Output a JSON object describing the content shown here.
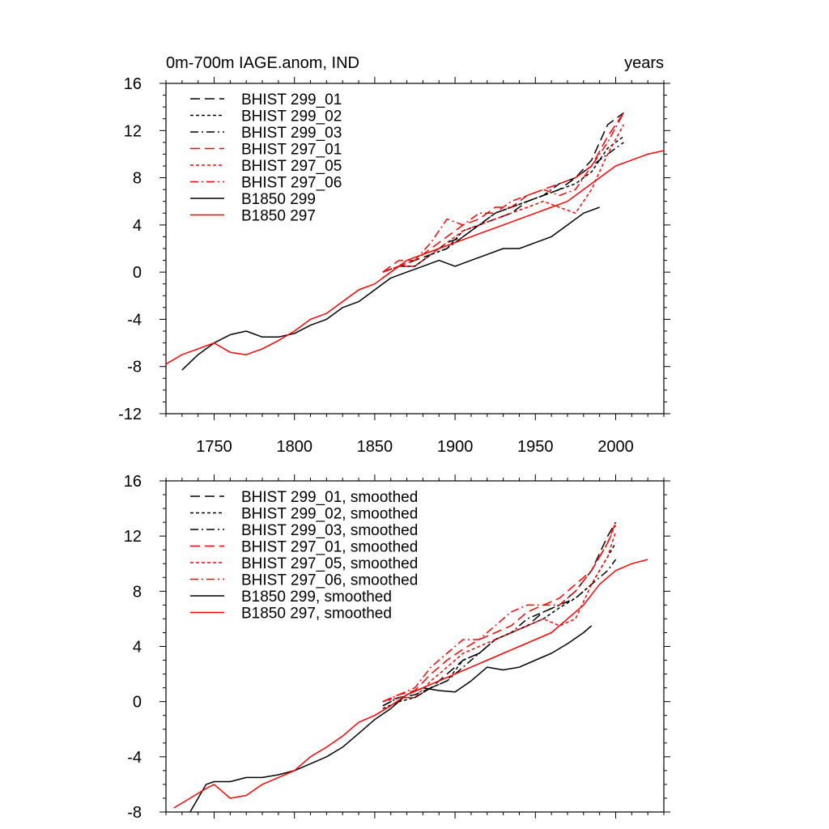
{
  "chart_data": [
    {
      "type": "line",
      "title": "0m-700m IAGE.anom, IND",
      "units_label": "years",
      "xlim": [
        1720,
        2030
      ],
      "ylim": [
        -12,
        16
      ],
      "xticks": [
        1750,
        1800,
        1850,
        1900,
        1950,
        2000
      ],
      "yticks": [
        -12,
        -8,
        -4,
        0,
        4,
        8,
        12,
        16
      ],
      "x_tick_labels_shown": true,
      "legend_position": "top-left",
      "series": [
        {
          "name": "BHIST 299_01",
          "color": "#000000",
          "dash": "long-dash",
          "x": [
            1855,
            1865,
            1875,
            1885,
            1895,
            1905,
            1915,
            1925,
            1935,
            1945,
            1955,
            1965,
            1975,
            1985,
            1995,
            2005
          ],
          "y": [
            0.0,
            0.5,
            1.0,
            1.5,
            2.5,
            3.0,
            4.0,
            4.5,
            5.0,
            6.0,
            6.5,
            7.0,
            8.0,
            9.5,
            12.5,
            13.5
          ]
        },
        {
          "name": "BHIST 299_02",
          "color": "#000000",
          "dash": "short-dash",
          "x": [
            1855,
            1865,
            1875,
            1885,
            1895,
            1905,
            1915,
            1925,
            1935,
            1945,
            1955,
            1965,
            1975,
            1985,
            1995,
            2005
          ],
          "y": [
            -0.5,
            0.5,
            0.5,
            1.5,
            2.0,
            3.5,
            4.0,
            5.0,
            5.5,
            6.0,
            6.5,
            7.0,
            7.5,
            8.5,
            10.5,
            11.5
          ]
        },
        {
          "name": "BHIST 299_03",
          "color": "#000000",
          "dash": "dash-dot",
          "x": [
            1855,
            1865,
            1875,
            1885,
            1895,
            1905,
            1915,
            1925,
            1935,
            1945,
            1955,
            1965,
            1975,
            1985,
            1995,
            2005
          ],
          "y": [
            0.0,
            0.5,
            0.5,
            1.5,
            2.0,
            3.0,
            4.0,
            5.0,
            5.5,
            6.0,
            6.5,
            7.5,
            8.0,
            9.0,
            10.0,
            11.0
          ]
        },
        {
          "name": "BHIST 297_01",
          "color": "#ff0000",
          "dash": "long-dash",
          "x": [
            1855,
            1865,
            1875,
            1885,
            1895,
            1905,
            1915,
            1925,
            1935,
            1945,
            1955,
            1965,
            1975,
            1985,
            1995,
            2005
          ],
          "y": [
            0.0,
            1.0,
            1.0,
            2.0,
            3.0,
            4.0,
            4.5,
            5.5,
            5.5,
            6.5,
            7.0,
            7.5,
            8.0,
            9.0,
            11.5,
            13.5
          ]
        },
        {
          "name": "BHIST 297_05",
          "color": "#ff0000",
          "dash": "short-dash",
          "x": [
            1855,
            1865,
            1875,
            1885,
            1895,
            1905,
            1915,
            1925,
            1935,
            1945,
            1955,
            1965,
            1975,
            1985,
            1995,
            2005
          ],
          "y": [
            0.0,
            0.5,
            0.5,
            1.5,
            2.5,
            3.5,
            4.0,
            4.5,
            5.0,
            5.5,
            6.0,
            5.5,
            5.0,
            7.0,
            10.0,
            12.5
          ]
        },
        {
          "name": "BHIST 297_06",
          "color": "#ff0000",
          "dash": "dash-dot",
          "x": [
            1855,
            1865,
            1875,
            1885,
            1895,
            1905,
            1915,
            1925,
            1935,
            1945,
            1955,
            1965,
            1975,
            1985,
            1995,
            2005
          ],
          "y": [
            0.0,
            0.5,
            1.0,
            2.5,
            4.5,
            4.0,
            5.0,
            5.0,
            6.0,
            6.5,
            7.0,
            6.5,
            7.0,
            9.0,
            11.0,
            13.5
          ]
        },
        {
          "name": "B1850 299",
          "color": "#000000",
          "dash": "solid",
          "x": [
            1730,
            1740,
            1750,
            1760,
            1770,
            1780,
            1790,
            1800,
            1810,
            1820,
            1830,
            1840,
            1850,
            1860,
            1870,
            1880,
            1890,
            1900,
            1910,
            1920,
            1930,
            1940,
            1950,
            1960,
            1970,
            1980,
            1990
          ],
          "y": [
            -8.3,
            -7.0,
            -6.0,
            -5.3,
            -5.0,
            -5.5,
            -5.5,
            -5.2,
            -4.5,
            -4.0,
            -3.0,
            -2.5,
            -1.5,
            -0.5,
            0.0,
            0.5,
            1.0,
            0.5,
            1.0,
            1.5,
            2.0,
            2.0,
            2.5,
            3.0,
            4.0,
            5.0,
            5.5
          ]
        },
        {
          "name": "B1850 297",
          "color": "#ff0000",
          "dash": "solid",
          "x": [
            1720,
            1730,
            1740,
            1750,
            1760,
            1770,
            1780,
            1790,
            1800,
            1810,
            1820,
            1830,
            1840,
            1850,
            1860,
            1870,
            1880,
            1890,
            1900,
            1910,
            1920,
            1930,
            1940,
            1950,
            1960,
            1970,
            1980,
            1990,
            2000,
            2010,
            2020,
            2030
          ],
          "y": [
            -7.8,
            -7.0,
            -6.5,
            -6.0,
            -6.8,
            -7.0,
            -6.5,
            -5.8,
            -5.0,
            -4.0,
            -3.5,
            -2.5,
            -1.5,
            -1.0,
            0.0,
            1.0,
            1.5,
            2.0,
            2.5,
            3.0,
            3.5,
            4.0,
            4.5,
            5.0,
            5.5,
            6.0,
            7.0,
            8.0,
            9.0,
            9.5,
            10.0,
            10.3
          ]
        }
      ]
    },
    {
      "type": "line",
      "xlim": [
        1720,
        2030
      ],
      "ylim": [
        -8,
        16
      ],
      "xticks": [
        1750,
        1800,
        1850,
        1900,
        1950,
        2000
      ],
      "yticks": [
        -8,
        -4,
        0,
        4,
        8,
        12,
        16
      ],
      "x_tick_labels_shown": false,
      "legend_position": "top-left",
      "series": [
        {
          "name": "BHIST 299_01, smoothed",
          "color": "#000000",
          "dash": "long-dash",
          "x": [
            1855,
            1865,
            1875,
            1885,
            1895,
            1905,
            1915,
            1925,
            1935,
            1945,
            1955,
            1965,
            1975,
            1985,
            1995,
            2000
          ],
          "y": [
            -0.3,
            0.3,
            0.5,
            1.0,
            2.0,
            3.0,
            3.5,
            4.5,
            5.0,
            5.5,
            6.5,
            7.0,
            8.0,
            9.5,
            12.0,
            13.0
          ]
        },
        {
          "name": "BHIST 299_02, smoothed",
          "color": "#000000",
          "dash": "short-dash",
          "x": [
            1855,
            1865,
            1875,
            1885,
            1895,
            1905,
            1915,
            1925,
            1935,
            1945,
            1955,
            1965,
            1975,
            1985,
            1995,
            2000
          ],
          "y": [
            -0.5,
            0.0,
            0.3,
            1.0,
            1.5,
            3.0,
            3.5,
            4.5,
            5.0,
            5.5,
            6.0,
            6.8,
            7.5,
            8.5,
            10.5,
            11.5
          ]
        },
        {
          "name": "BHIST 299_03, smoothed",
          "color": "#000000",
          "dash": "dash-dot",
          "x": [
            1855,
            1865,
            1875,
            1885,
            1895,
            1905,
            1915,
            1925,
            1935,
            1945,
            1955,
            1965,
            1975,
            1985,
            1995,
            2000
          ],
          "y": [
            -0.3,
            0.3,
            0.3,
            1.0,
            1.5,
            2.5,
            3.5,
            4.5,
            5.0,
            6.0,
            6.5,
            7.0,
            7.5,
            8.5,
            9.5,
            10.3
          ]
        },
        {
          "name": "BHIST 297_01, smoothed",
          "color": "#ff0000",
          "dash": "long-dash",
          "x": [
            1855,
            1865,
            1875,
            1885,
            1895,
            1905,
            1915,
            1925,
            1935,
            1945,
            1955,
            1965,
            1975,
            1985,
            1995,
            2000
          ],
          "y": [
            0.0,
            0.5,
            0.8,
            2.0,
            3.0,
            3.8,
            4.5,
            5.0,
            5.5,
            6.5,
            7.0,
            7.5,
            8.5,
            9.5,
            11.5,
            13.0
          ]
        },
        {
          "name": "BHIST 297_05, smoothed",
          "color": "#ff0000",
          "dash": "short-dash",
          "x": [
            1855,
            1865,
            1875,
            1885,
            1895,
            1905,
            1915,
            1925,
            1935,
            1945,
            1955,
            1965,
            1975,
            1985,
            1995,
            2000
          ],
          "y": [
            0.0,
            0.3,
            0.3,
            1.5,
            2.5,
            3.5,
            4.0,
            4.5,
            5.0,
            5.5,
            6.0,
            5.5,
            6.0,
            8.5,
            10.5,
            12.3
          ]
        },
        {
          "name": "BHIST 297_06, smoothed",
          "color": "#ff0000",
          "dash": "dash-dot",
          "x": [
            1855,
            1865,
            1875,
            1885,
            1895,
            1905,
            1915,
            1925,
            1935,
            1945,
            1955,
            1965,
            1975,
            1985,
            1995,
            2000
          ],
          "y": [
            0.0,
            0.5,
            1.0,
            2.5,
            3.5,
            4.5,
            4.5,
            5.5,
            6.5,
            7.0,
            7.0,
            7.0,
            8.0,
            9.5,
            11.5,
            12.8
          ]
        },
        {
          "name": "B1850 299, smoothed",
          "color": "#000000",
          "dash": "solid",
          "x": [
            1735,
            1740,
            1745,
            1750,
            1760,
            1770,
            1780,
            1790,
            1800,
            1810,
            1820,
            1830,
            1840,
            1850,
            1860,
            1870,
            1880,
            1890,
            1900,
            1910,
            1920,
            1930,
            1940,
            1950,
            1960,
            1970,
            1980,
            1985
          ],
          "y": [
            -8.0,
            -7.0,
            -6.0,
            -5.8,
            -5.8,
            -5.5,
            -5.5,
            -5.3,
            -5.0,
            -4.5,
            -4.0,
            -3.3,
            -2.3,
            -1.3,
            -0.5,
            0.5,
            1.0,
            0.8,
            0.7,
            1.5,
            2.5,
            2.3,
            2.5,
            3.0,
            3.5,
            4.2,
            5.0,
            5.5
          ]
        },
        {
          "name": "B1850 297, smoothed",
          "color": "#ff0000",
          "dash": "solid",
          "x": [
            1725,
            1735,
            1745,
            1750,
            1755,
            1760,
            1770,
            1780,
            1790,
            1800,
            1810,
            1820,
            1830,
            1840,
            1850,
            1860,
            1870,
            1880,
            1890,
            1900,
            1910,
            1920,
            1930,
            1940,
            1950,
            1960,
            1970,
            1980,
            1990,
            2000,
            2010,
            2020
          ],
          "y": [
            -7.7,
            -7.0,
            -6.3,
            -6.0,
            -6.5,
            -7.0,
            -6.8,
            -6.0,
            -5.5,
            -5.0,
            -4.0,
            -3.3,
            -2.5,
            -1.5,
            -1.0,
            -0.3,
            0.5,
            1.0,
            1.5,
            2.0,
            2.5,
            3.0,
            3.5,
            4.0,
            4.5,
            5.0,
            6.0,
            7.0,
            8.5,
            9.5,
            10.0,
            10.3
          ]
        }
      ]
    }
  ]
}
